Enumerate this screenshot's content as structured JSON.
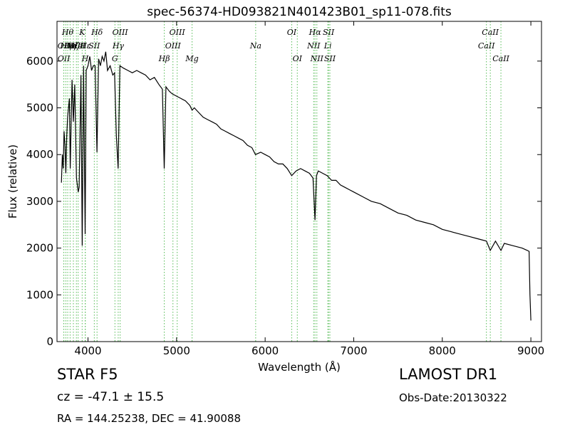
{
  "chart_data": {
    "type": "line",
    "title": "spec-56374-HD093821N401423B01_sp11-078.fits",
    "xlabel": "Wavelength (Å)",
    "ylabel": "Flux (relative)",
    "xlim": [
      3650,
      9120
    ],
    "ylim": [
      0,
      6850
    ],
    "xticks": [
      4000,
      5000,
      6000,
      7000,
      8000,
      9000
    ],
    "yticks": [
      0,
      1000,
      2000,
      3000,
      4000,
      5000,
      6000
    ],
    "grid": false,
    "legend": "none",
    "line_color": "#000000",
    "marker_color": "#55bb55",
    "series": [
      {
        "x": [
          3700,
          3710,
          3720,
          3730,
          3740,
          3750,
          3760,
          3770,
          3790,
          3800,
          3820,
          3835,
          3850,
          3870,
          3890,
          3900,
          3920,
          3935,
          3950,
          3968,
          3980,
          4000,
          4020,
          4040,
          4060,
          4080,
          4101,
          4120,
          4140,
          4160,
          4180,
          4200,
          4220,
          4250,
          4280,
          4300,
          4320,
          4340,
          4360,
          4400,
          4450,
          4500,
          4550,
          4600,
          4650,
          4700,
          4750,
          4800,
          4840,
          4861,
          4880,
          4900,
          4920,
          4950,
          5000,
          5050,
          5100,
          5150,
          5175,
          5200,
          5250,
          5300,
          5350,
          5400,
          5450,
          5500,
          5550,
          5600,
          5650,
          5700,
          5750,
          5800,
          5850,
          5890,
          5950,
          6000,
          6050,
          6100,
          6150,
          6200,
          6250,
          6300,
          6350,
          6400,
          6450,
          6500,
          6540,
          6563,
          6580,
          6600,
          6650,
          6700,
          6750,
          6800,
          6850,
          6900,
          6950,
          7000,
          7100,
          7200,
          7300,
          7400,
          7500,
          7600,
          7700,
          7800,
          7900,
          8000,
          8100,
          8200,
          8300,
          8400,
          8498,
          8542,
          8600,
          8662,
          8700,
          8800,
          8900,
          8960,
          8980,
          8990,
          9000
        ],
        "y": [
          3400,
          4000,
          3700,
          4500,
          4200,
          3600,
          4400,
          4800,
          5200,
          3700,
          5600,
          4700,
          5500,
          3500,
          3200,
          3300,
          5700,
          2050,
          5900,
          2300,
          5800,
          5900,
          6100,
          5800,
          5900,
          5900,
          4050,
          6050,
          5900,
          6100,
          6000,
          6200,
          5800,
          5900,
          5700,
          5750,
          4400,
          3700,
          5900,
          5850,
          5800,
          5750,
          5800,
          5750,
          5700,
          5600,
          5650,
          5500,
          5400,
          3700,
          5450,
          5400,
          5350,
          5300,
          5250,
          5200,
          5150,
          5050,
          4950,
          5000,
          4900,
          4800,
          4750,
          4700,
          4650,
          4550,
          4500,
          4450,
          4400,
          4350,
          4300,
          4200,
          4150,
          4000,
          4050,
          4000,
          3950,
          3850,
          3800,
          3800,
          3700,
          3550,
          3650,
          3700,
          3650,
          3600,
          3500,
          2600,
          3550,
          3650,
          3600,
          3550,
          3450,
          3450,
          3350,
          3300,
          3250,
          3200,
          3100,
          3000,
          2950,
          2850,
          2750,
          2700,
          2600,
          2550,
          2500,
          2400,
          2350,
          2300,
          2250,
          2200,
          2150,
          1950,
          2150,
          1950,
          2100,
          2050,
          2000,
          1950,
          1930,
          1000,
          450
        ]
      }
    ],
    "line_markers": [
      {
        "wl": 3727,
        "label": "OII",
        "row": 1
      },
      {
        "wl": 3727,
        "label": "OII",
        "row": 2
      },
      {
        "wl": 3750,
        "label": "Hη",
        "row": 1
      },
      {
        "wl": 3771,
        "label": "Hθ",
        "row": 0
      },
      {
        "wl": 3798,
        "label": "Hη",
        "row": 1
      },
      {
        "wl": 3835,
        "label": "Hζ",
        "row": 1
      },
      {
        "wl": 3869,
        "label": "NeIII",
        "row": 1
      },
      {
        "wl": 3889,
        "label": "HeI",
        "row": 1
      },
      {
        "wl": 3934,
        "label": "K",
        "row": 0
      },
      {
        "wl": 3968,
        "label": "H",
        "row": 2
      },
      {
        "wl": 3970,
        "label": "Hε",
        "row": 1
      },
      {
        "wl": 4071,
        "label": "SII",
        "row": 1
      },
      {
        "wl": 4102,
        "label": "Hδ",
        "row": 0
      },
      {
        "wl": 4304,
        "label": "G",
        "row": 2
      },
      {
        "wl": 4341,
        "label": "Hγ",
        "row": 1
      },
      {
        "wl": 4363,
        "label": "OIII",
        "row": 0
      },
      {
        "wl": 4861,
        "label": "Hβ",
        "row": 2
      },
      {
        "wl": 4959,
        "label": "OIII",
        "row": 1
      },
      {
        "wl": 5007,
        "label": "OIII",
        "row": 0
      },
      {
        "wl": 5175,
        "label": "Mg",
        "row": 2
      },
      {
        "wl": 5893,
        "label": "Na",
        "row": 1
      },
      {
        "wl": 6300,
        "label": "OI",
        "row": 0
      },
      {
        "wl": 6363,
        "label": "OI",
        "row": 2
      },
      {
        "wl": 6548,
        "label": "NII",
        "row": 1
      },
      {
        "wl": 6563,
        "label": "Hα",
        "row": 0
      },
      {
        "wl": 6584,
        "label": "NII",
        "row": 2
      },
      {
        "wl": 6708,
        "label": "Li",
        "row": 1
      },
      {
        "wl": 6716,
        "label": "SII",
        "row": 0
      },
      {
        "wl": 6731,
        "label": "SII",
        "row": 2
      },
      {
        "wl": 8498,
        "label": "CaII",
        "row": 1
      },
      {
        "wl": 8542,
        "label": "CaII",
        "row": 0
      },
      {
        "wl": 8662,
        "label": "CaII",
        "row": 2
      }
    ]
  },
  "info": {
    "class": "STAR   F5",
    "cz": "cz = -47.1 ± 15.5",
    "radec": "RA = 144.25238, DEC = 41.90088",
    "survey": "LAMOST DR1",
    "obs_date": "Obs-Date:20130322"
  }
}
